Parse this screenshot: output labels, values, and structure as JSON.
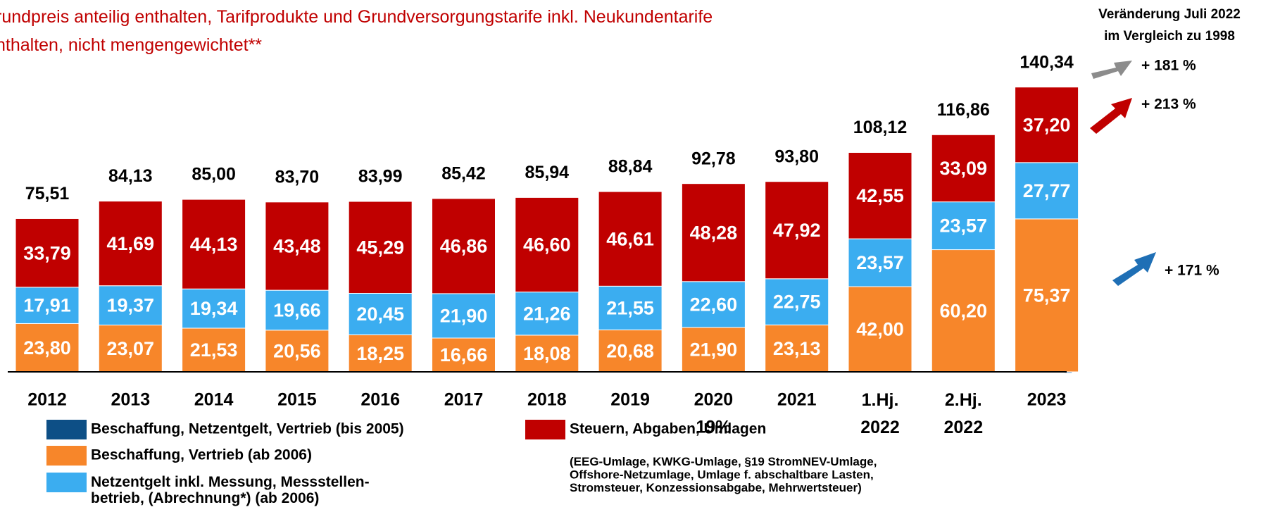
{
  "chart_data": {
    "type": "stacked_bar",
    "subtitle": "rundpreis anteilig enthalten, Tarifprodukte und Grundversorgungstarife inkl. Neukundentarife\nnthalten, nicht mengengewichtet**",
    "categories": [
      "2012",
      "2013",
      "2014",
      "2015",
      "2016",
      "2017",
      "2018",
      "2019",
      "2020",
      "2021",
      "1.Hj.\n2022",
      "2.Hj.\n2022",
      "2023"
    ],
    "series": [
      {
        "name": "Beschaffung, Netzentgelt, Vertrieb (bis 2005)",
        "color": "#0d4f86",
        "values": [
          null,
          null,
          null,
          null,
          null,
          null,
          null,
          null,
          null,
          null,
          null,
          null,
          null
        ]
      },
      {
        "name": "Beschaffung, Vertrieb (ab 2006)",
        "color": "#f7862a",
        "values": [
          23.8,
          23.07,
          21.53,
          20.56,
          18.25,
          16.66,
          18.08,
          20.68,
          21.9,
          23.13,
          42.0,
          60.2,
          75.37
        ],
        "value_labels": [
          "23,80",
          "23,07",
          "21,53",
          "20,56",
          "18,25",
          "16,66",
          "18,08",
          "20,68",
          "21,90",
          "23,13",
          "42,00",
          "60,20",
          "75,37"
        ]
      },
      {
        "name": "Netzentgelt inkl. Messung, Messstellen-\nbetrieb, (Abrechnung*) (ab 2006)",
        "color": "#3badf0",
        "values": [
          17.91,
          19.37,
          19.34,
          19.66,
          20.45,
          21.9,
          21.26,
          21.55,
          22.6,
          22.75,
          23.57,
          23.57,
          27.77
        ],
        "value_labels": [
          "17,91",
          "19,37",
          "19,34",
          "19,66",
          "20,45",
          "21,90",
          "21,26",
          "21,55",
          "22,60",
          "22,75",
          "23,57",
          "23,57",
          "27,77"
        ]
      },
      {
        "name": "Steuern, Abgaben, Umlagen",
        "color": "#c00000",
        "note": "(EEG-Umlage, KWKG-Umlage, §19 StromNEV-Umlage,\nOffshore-Netzumlage,  Umlage f. abschaltbare Lasten,\nStromsteuer, Konzessionsabgabe, Mehrwertsteuer)",
        "values": [
          33.79,
          41.69,
          44.13,
          43.48,
          45.29,
          46.86,
          46.6,
          46.61,
          48.28,
          47.92,
          42.55,
          33.09,
          37.2
        ],
        "value_labels": [
          "33,79",
          "41,69",
          "44,13",
          "43,48",
          "45,29",
          "46,86",
          "46,60",
          "46,61",
          "48,28",
          "47,92",
          "42,55",
          "33,09",
          "37,20"
        ]
      }
    ],
    "totals": {
      "values": [
        75.51,
        84.13,
        85.0,
        83.7,
        83.99,
        85.42,
        85.94,
        88.84,
        92.78,
        93.8,
        108.12,
        116.86,
        140.34
      ],
      "value_labels": [
        "75,51",
        "84,13",
        "85,00",
        "83,70",
        "83,99",
        "85,42",
        "85,94",
        "88,84",
        "92,78",
        "93,80",
        "108,12",
        "116,86",
        "140,34"
      ]
    },
    "category_note": "19%",
    "ylim": [
      0,
      160
    ],
    "change_header": "Veränderung Juli 2022\nim Vergleich zu 1998",
    "changes": [
      "+ 181 %",
      "+ 213 %",
      "+ 171 %"
    ]
  }
}
